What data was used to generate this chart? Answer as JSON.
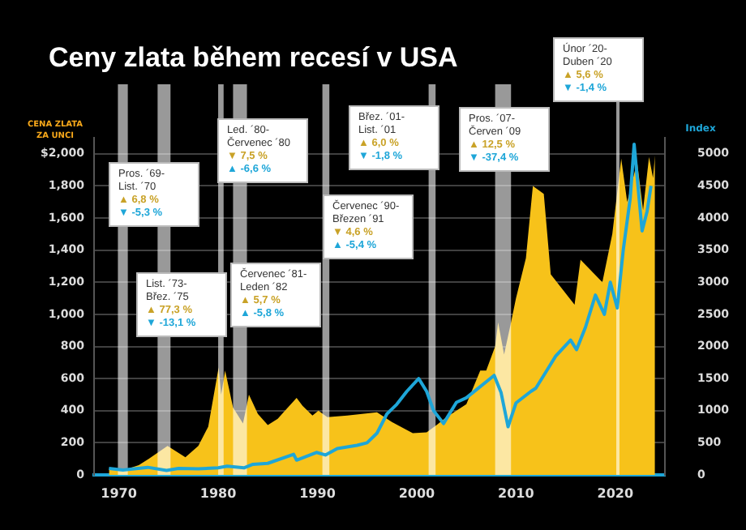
{
  "chart_data": {
    "type": "area",
    "title": "Ceny zlata během recesí v USA",
    "ylabel": "CENA ZLATA\nZA UNCI",
    "y2label": "Index",
    "xlim": [
      1967.5,
      2025
    ],
    "xticks": [
      1970,
      1980,
      1990,
      2000,
      2010,
      2020
    ],
    "ylim": [
      0,
      2100
    ],
    "yticks": [
      0,
      200,
      400,
      600,
      800,
      {
        "value": 1000,
        "label": "1,000"
      },
      {
        "value": 1200,
        "label": "1,200"
      },
      {
        "value": 1400,
        "label": "1,400"
      },
      {
        "value": 1600,
        "label": "1,600"
      },
      {
        "value": 1800,
        "label": "1,800"
      },
      {
        "value": 2000,
        "label": "$2,000"
      }
    ],
    "y2lim": [
      0,
      5250
    ],
    "y2ticks": [
      0,
      500,
      1000,
      1500,
      2000,
      2500,
      3000,
      3500,
      4000,
      4500,
      5000
    ],
    "grid": "y",
    "legend": false,
    "series": [
      {
        "color": "#f7c21a",
        "x": [
          1969,
          1970,
          1971,
          1972,
          1973,
          1974.9,
          1976.7,
          1978,
          1979,
          1980.05,
          1980.3,
          1980.7,
          1981.5,
          1982.5,
          1983.1,
          1984,
          1985,
          1986,
          1987.9,
          1988.5,
          1989.5,
          1990.1,
          1991,
          1993,
          1996,
          1997.5,
          1999.6,
          2001,
          2002,
          2003,
          2004,
          2005,
          2006.4,
          2007,
          2007.9,
          2008.2,
          2008.8,
          2009.5,
          2010,
          2011,
          2011.7,
          2012.8,
          2013.5,
          2015.9,
          2016.5,
          2018.7,
          2019.7,
          2020.6,
          2021.2,
          2022.2,
          2022.8,
          2023.4,
          2023.8,
          2024
        ],
        "values": [
          41,
          36,
          40,
          60,
          100,
          180,
          110,
          180,
          300,
          670,
          500,
          650,
          420,
          320,
          500,
          380,
          310,
          350,
          480,
          430,
          370,
          400,
          360,
          370,
          390,
          330,
          260,
          265,
          310,
          360,
          400,
          440,
          650,
          650,
          800,
          950,
          750,
          950,
          1100,
          1350,
          1800,
          1750,
          1250,
          1060,
          1340,
          1200,
          1500,
          1970,
          1700,
          1950,
          1650,
          1980,
          1850,
          1990
        ]
      },
      {
        "type": "line",
        "axis": "y2",
        "color": "#1ea6d8",
        "x": [
          1969,
          1970.4,
          1972.9,
          1974.8,
          1976,
          1978,
          1980,
          1980.9,
          1982.6,
          1983.5,
          1985,
          1987.6,
          1987.9,
          1989.9,
          1990.8,
          1992,
          1994,
          1995,
          1996,
          1997,
          1998,
          1999,
          2000.2,
          2001,
          2001.7,
          2002.7,
          2004,
          2005,
          2007.8,
          2008.5,
          2009.2,
          2010,
          2011.5,
          2012,
          2013,
          2014,
          2015.5,
          2016.1,
          2017,
          2018,
          2018.9,
          2019.5,
          2020.2,
          2020.8,
          2021.5,
          2021.9,
          2022.7,
          2023.2,
          2023.6
        ],
        "values": [
          100,
          75,
          118,
          70,
          100,
          95,
          110,
          135,
          110,
          165,
          180,
          320,
          230,
          350,
          310,
          410,
          460,
          500,
          650,
          950,
          1100,
          1300,
          1500,
          1300,
          1000,
          800,
          1130,
          1200,
          1550,
          1280,
          750,
          1120,
          1300,
          1350,
          1600,
          1850,
          2100,
          1950,
          2300,
          2800,
          2500,
          3000,
          2600,
          3500,
          4300,
          5150,
          3800,
          4100,
          4500
        ]
      }
    ],
    "bands": [
      {
        "axis": "x",
        "from": 1969.9,
        "to": 1970.9,
        "color": "#ffffff",
        "label": "Pros. ´69-\nList. ´70\n▲ 6,8 %\n▼ -5,3 %"
      },
      {
        "axis": "x",
        "from": 1973.9,
        "to": 1975.2,
        "color": "#ffffff",
        "label": "List. ´73-\nBřez. ´75\n▲ 77,3 %\n▼ -13,1 %"
      },
      {
        "axis": "x",
        "from": 1980,
        "to": 1980.55,
        "color": "#ffffff",
        "label": "Led. ´80-\nČervenec ´80\n▼ 7,5 %\n▲ -6,6 %"
      },
      {
        "axis": "x",
        "from": 1981.5,
        "to": 1982.9,
        "color": "#ffffff",
        "label": "Červenec ´81-\nLeden ´82\n▲ 5,7 %\n▲ -5,8 %"
      },
      {
        "axis": "x",
        "from": 1990.5,
        "to": 1991.2,
        "color": "#ffffff",
        "label": "Červenec ´90-\nBřezen ´91\n▼ 4,6 %\n▲ -5,4 %"
      },
      {
        "axis": "x",
        "from": 2001.2,
        "to": 2001.9,
        "color": "#ffffff",
        "label": "Břez. ´01-\nList. ´01\n▲ 6,0 %\n▼ -1,8 %"
      },
      {
        "axis": "x",
        "from": 2007.9,
        "to": 2009.5,
        "color": "#ffffff",
        "label": "Pros. ´07-\nČerven ´09\n▲ 12,5 %\n▼ -37,4 %"
      },
      {
        "axis": "x",
        "from": 2020.1,
        "to": 2020.3,
        "color": "#ffffff",
        "label": "Únor ´20-\nDuben ´20\n▲ 5,6 %\n▼ -1,4 %"
      }
    ]
  }
}
